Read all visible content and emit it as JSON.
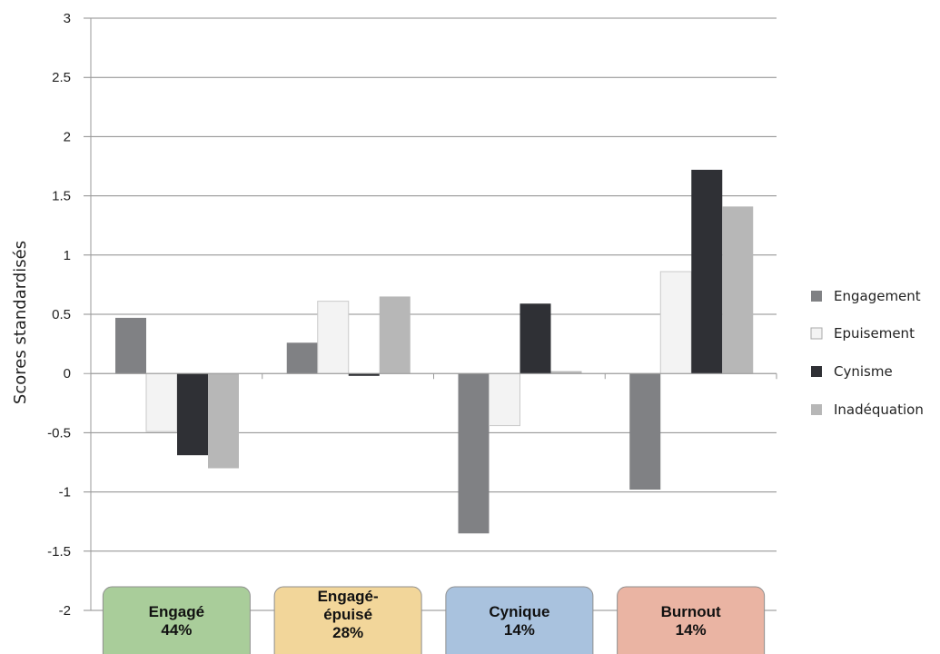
{
  "chart_data": {
    "type": "bar",
    "ylabel": "Scores standardisés",
    "ylim": [
      -2,
      3
    ],
    "yticks": [
      "-2",
      "-1.5",
      "-1",
      "-0.5",
      "0",
      "0.5",
      "1",
      "1.5",
      "2",
      "2.5",
      "3"
    ],
    "grid": true,
    "legend_position": "right",
    "categories": [
      {
        "lines": [
          "Engagé",
          "44%"
        ],
        "color": "#a9cd9a"
      },
      {
        "lines": [
          "Engagé-",
          "épuisé",
          "28%"
        ],
        "color": "#f2d69a"
      },
      {
        "lines": [
          "Cynique",
          "14%"
        ],
        "color": "#a9c2de"
      },
      {
        "lines": [
          "Burnout",
          "14%"
        ],
        "color": "#eab4a3"
      }
    ],
    "series": [
      {
        "name": "Engagement",
        "color": "#808184",
        "values": [
          0.47,
          0.26,
          -1.35,
          -0.98
        ]
      },
      {
        "name": "Epuisement",
        "color": "#f3f3f3",
        "values": [
          -0.49,
          0.61,
          -0.44,
          0.86
        ]
      },
      {
        "name": "Cynisme",
        "color": "#2f3035",
        "values": [
          -0.69,
          -0.02,
          0.59,
          1.72
        ]
      },
      {
        "name": "Inadéquation",
        "color": "#b7b7b7",
        "values": [
          -0.8,
          0.65,
          0.02,
          1.41
        ]
      }
    ]
  }
}
